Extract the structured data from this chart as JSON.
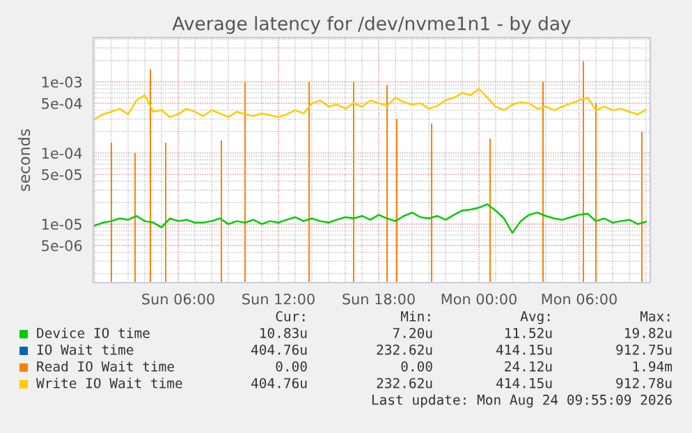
{
  "chart_data": {
    "type": "line",
    "title": "Average latency for /dev/nvme1n1 - by day",
    "ylabel": "seconds",
    "log": "y",
    "grid": true,
    "legend": "bottom",
    "ylim": [
      1.5e-06,
      0.0042
    ],
    "yticks": [
      {
        "value": 5e-06,
        "label": "5e-06"
      },
      {
        "value": 1e-05,
        "label": "1e-05"
      },
      {
        "value": 5e-05,
        "label": "5e-05"
      },
      {
        "value": 0.0001,
        "label": "1e-04"
      },
      {
        "value": 0.0005,
        "label": "5e-04"
      },
      {
        "value": 0.001,
        "label": "1e-03"
      }
    ],
    "xlim": [
      "2026-08-23T00:55",
      "2026-08-24T10:15"
    ],
    "xticks": [
      {
        "value": "2026-08-23T06:00",
        "label": "Sun 06:00"
      },
      {
        "value": "2026-08-23T12:00",
        "label": "Sun 12:00"
      },
      {
        "value": "2026-08-23T18:00",
        "label": "Sun 18:00"
      },
      {
        "value": "2026-08-24T00:00",
        "label": "Mon 00:00"
      },
      {
        "value": "2026-08-24T06:00",
        "label": "Mon 06:00"
      }
    ],
    "x": [
      "2026-08-23T01:00",
      "2026-08-23T01:30",
      "2026-08-23T02:00",
      "2026-08-23T02:30",
      "2026-08-23T03:00",
      "2026-08-23T03:30",
      "2026-08-23T04:00",
      "2026-08-23T04:30",
      "2026-08-23T05:00",
      "2026-08-23T05:30",
      "2026-08-23T06:00",
      "2026-08-23T06:30",
      "2026-08-23T07:00",
      "2026-08-23T07:30",
      "2026-08-23T08:00",
      "2026-08-23T08:30",
      "2026-08-23T09:00",
      "2026-08-23T09:30",
      "2026-08-23T10:00",
      "2026-08-23T10:30",
      "2026-08-23T11:00",
      "2026-08-23T11:30",
      "2026-08-23T12:00",
      "2026-08-23T12:30",
      "2026-08-23T13:00",
      "2026-08-23T13:30",
      "2026-08-23T14:00",
      "2026-08-23T14:30",
      "2026-08-23T15:00",
      "2026-08-23T15:30",
      "2026-08-23T16:00",
      "2026-08-23T16:30",
      "2026-08-23T17:00",
      "2026-08-23T17:30",
      "2026-08-23T18:00",
      "2026-08-23T18:30",
      "2026-08-23T19:00",
      "2026-08-23T19:30",
      "2026-08-23T20:00",
      "2026-08-23T20:30",
      "2026-08-23T21:00",
      "2026-08-23T21:30",
      "2026-08-23T22:00",
      "2026-08-23T22:30",
      "2026-08-23T23:00",
      "2026-08-23T23:30",
      "2026-08-24T00:00",
      "2026-08-24T00:30",
      "2026-08-24T01:00",
      "2026-08-24T01:30",
      "2026-08-24T02:00",
      "2026-08-24T02:30",
      "2026-08-24T03:00",
      "2026-08-24T03:30",
      "2026-08-24T04:00",
      "2026-08-24T04:30",
      "2026-08-24T05:00",
      "2026-08-24T05:30",
      "2026-08-24T06:00",
      "2026-08-24T06:30",
      "2026-08-24T07:00",
      "2026-08-24T07:30",
      "2026-08-24T08:00",
      "2026-08-24T08:30",
      "2026-08-24T09:00",
      "2026-08-24T09:30",
      "2026-08-24T10:00"
    ],
    "series": [
      {
        "name": "Device IO time",
        "color": "#00cc00",
        "values": [
          9.5e-06,
          1.05e-05,
          1.1e-05,
          1.2e-05,
          1.15e-05,
          1.3e-05,
          1.1e-05,
          1.05e-05,
          9e-06,
          1.2e-05,
          1.1e-05,
          1.15e-05,
          1.05e-05,
          1.05e-05,
          1.1e-05,
          1.2e-05,
          1e-05,
          1.1e-05,
          1.05e-05,
          1.15e-05,
          1e-05,
          1.1e-05,
          1.05e-05,
          1.15e-05,
          1.25e-05,
          1.1e-05,
          1.2e-05,
          1.1e-05,
          1.05e-05,
          1.15e-05,
          1.25e-05,
          1.2e-05,
          1.3e-05,
          1.15e-05,
          1.35e-05,
          1.2e-05,
          1.1e-05,
          1.3e-05,
          1.45e-05,
          1.25e-05,
          1.2e-05,
          1.3e-05,
          1.15e-05,
          1.35e-05,
          1.55e-05,
          1.6e-05,
          1.7e-05,
          1.9e-05,
          1.55e-05,
          1.2e-05,
          7.5e-06,
          1.1e-05,
          1.35e-05,
          1.45e-05,
          1.3e-05,
          1.2e-05,
          1.15e-05,
          1.25e-05,
          1.35e-05,
          1.4e-05,
          1.1e-05,
          1.2e-05,
          1.05e-05,
          1.1e-05,
          1.15e-05,
          1e-05,
          1.08e-05
        ]
      },
      {
        "name": "IO Wait time",
        "color": "#0066b3",
        "values": [
          null,
          null,
          null,
          null,
          null,
          null,
          null,
          null,
          null,
          null,
          null,
          null,
          null,
          null,
          null,
          null,
          null,
          null,
          null,
          null,
          null,
          null,
          null,
          null,
          null,
          null,
          null,
          null,
          null,
          null,
          null,
          null,
          null,
          null,
          null,
          null,
          null,
          null,
          null,
          null,
          null,
          null,
          null,
          null,
          null,
          null,
          null,
          null,
          null,
          null,
          null,
          null,
          null,
          null,
          null,
          null,
          null,
          null,
          null,
          null,
          null,
          null,
          null,
          null,
          null,
          null,
          null
        ]
      },
      {
        "name": "Read IO Wait time",
        "color": "#ff8000",
        "type": "bar",
        "x": [
          "2026-08-23T02:00",
          "2026-08-23T03:25",
          "2026-08-23T04:20",
          "2026-08-23T05:15",
          "2026-08-23T08:35",
          "2026-08-23T10:00",
          "2026-08-23T13:50",
          "2026-08-23T16:30",
          "2026-08-23T18:30",
          "2026-08-23T19:05",
          "2026-08-23T21:10",
          "2026-08-24T00:40",
          "2026-08-24T03:50",
          "2026-08-24T06:15",
          "2026-08-24T07:00",
          "2026-08-24T09:45"
        ],
        "values": [
          0.00014,
          0.0001,
          0.0015,
          0.00014,
          0.00015,
          0.001,
          0.001,
          0.001,
          0.0009,
          0.0003,
          0.00026,
          0.00016,
          0.001,
          0.00194,
          0.0005,
          0.0002
        ]
      },
      {
        "name": "Write IO Wait time",
        "color": "#ffcc00",
        "values": [
          0.0003,
          0.00035,
          0.00038,
          0.00042,
          0.00035,
          0.00055,
          0.00065,
          0.00038,
          0.0004,
          0.00032,
          0.00035,
          0.00042,
          0.00038,
          0.00033,
          0.0004,
          0.00036,
          0.00032,
          0.00038,
          0.00035,
          0.00033,
          0.00036,
          0.00034,
          0.00032,
          0.00035,
          0.0004,
          0.00036,
          0.0005,
          0.00055,
          0.00045,
          0.00048,
          0.00042,
          0.0005,
          0.00045,
          0.00055,
          0.0005,
          0.00046,
          0.0006,
          0.00052,
          0.00048,
          0.0005,
          0.00042,
          0.00046,
          0.00055,
          0.0006,
          0.0007,
          0.00065,
          0.0008,
          0.0006,
          0.00045,
          0.0004,
          0.00048,
          0.00052,
          0.0005,
          0.00042,
          0.00045,
          0.0004,
          0.00045,
          0.0005,
          0.00055,
          0.0006,
          0.0004,
          0.00045,
          0.0004,
          0.00042,
          0.00038,
          0.00035,
          0.000405
        ]
      }
    ],
    "annotations": [
      "Cur:",
      "Min:",
      "Avg:",
      "Max:",
      "10.83u",
      "7.20u",
      "11.52u",
      "19.82u",
      "404.76u",
      "232.62u",
      "414.15u",
      "912.75u",
      "0.00",
      "0.00",
      "24.12u",
      "1.94m",
      "404.76u",
      "232.62u",
      "414.15u",
      "912.78u",
      "Last update: Mon Aug 24 09:55:09 2026"
    ]
  }
}
